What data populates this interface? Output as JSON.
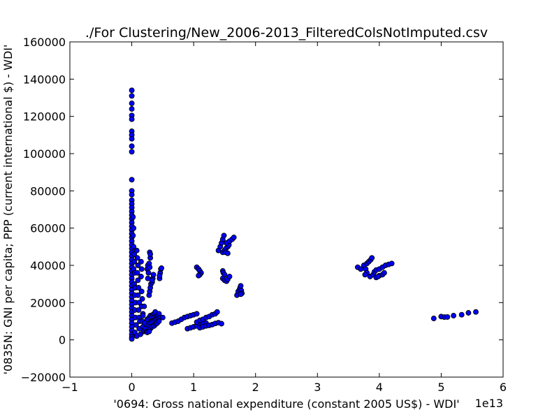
{
  "chart_data": {
    "type": "scatter",
    "title": "./For Clustering/New_2006-2013_FilteredColsNotImputed.csv",
    "xlabel": "'0694: Gross national expenditure  (constant 2005 US$) - WDI'",
    "ylabel": "'0835N: GNI per capita; PPP  (current international $) - WDI'",
    "x_offset_label": "1e13",
    "xlim": [
      -1,
      6
    ],
    "ylim": [
      -20000,
      160000
    ],
    "x_ticks": [
      "−1",
      "0",
      "1",
      "2",
      "3",
      "4",
      "5",
      "6"
    ],
    "y_ticks": [
      "−20000",
      "0",
      "20000",
      "40000",
      "60000",
      "80000",
      "100000",
      "120000",
      "140000",
      "160000"
    ],
    "grid": false,
    "marker_color": "#0000ff",
    "points": [
      [
        0.0,
        134000
      ],
      [
        0.0,
        131000
      ],
      [
        0.0,
        127000
      ],
      [
        0.0,
        124000
      ],
      [
        0.0,
        120500
      ],
      [
        0.0,
        118500
      ],
      [
        0.0,
        112000
      ],
      [
        0.0,
        110000
      ],
      [
        0.0,
        108000
      ],
      [
        0.0,
        104000
      ],
      [
        0.0,
        101000
      ],
      [
        0.0,
        86000
      ],
      [
        0.0,
        80000
      ],
      [
        0.0,
        78000
      ],
      [
        0.0,
        75000
      ],
      [
        0.0,
        73000
      ],
      [
        0.0,
        71000
      ],
      [
        0.0,
        69000
      ],
      [
        0.0,
        67000
      ],
      [
        0.0,
        65000
      ],
      [
        0.0,
        63000
      ],
      [
        0.0,
        61000
      ],
      [
        0.0,
        59000
      ],
      [
        0.0,
        57000
      ],
      [
        0.0,
        55000
      ],
      [
        0.0,
        53000
      ],
      [
        0.0,
        51000
      ],
      [
        0.0,
        49000
      ],
      [
        0.0,
        47000
      ],
      [
        0.0,
        45000
      ],
      [
        0.0,
        43000
      ],
      [
        0.0,
        41000
      ],
      [
        0.0,
        39000
      ],
      [
        0.0,
        37000
      ],
      [
        0.0,
        35000
      ],
      [
        0.0,
        33000
      ],
      [
        0.0,
        31000
      ],
      [
        0.0,
        29000
      ],
      [
        0.0,
        27000
      ],
      [
        0.0,
        25000
      ],
      [
        0.0,
        23000
      ],
      [
        0.0,
        21000
      ],
      [
        0.0,
        19000
      ],
      [
        0.0,
        17000
      ],
      [
        0.0,
        15000
      ],
      [
        0.0,
        13000
      ],
      [
        0.0,
        11000
      ],
      [
        0.0,
        9000
      ],
      [
        0.0,
        7000
      ],
      [
        0.0,
        5000
      ],
      [
        0.0,
        3000
      ],
      [
        0.0,
        1500
      ],
      [
        0.0,
        500
      ],
      [
        0.02,
        66000
      ],
      [
        0.03,
        60000
      ],
      [
        0.02,
        56000
      ],
      [
        0.03,
        50000
      ],
      [
        0.04,
        46000
      ],
      [
        0.04,
        42000
      ],
      [
        0.03,
        38000
      ],
      [
        0.05,
        36000
      ],
      [
        0.04,
        30000
      ],
      [
        0.06,
        28000
      ],
      [
        0.05,
        24000
      ],
      [
        0.06,
        20000
      ],
      [
        0.05,
        16000
      ],
      [
        0.06,
        12000
      ],
      [
        0.07,
        8000
      ],
      [
        0.05,
        4000
      ],
      [
        0.08,
        2000
      ],
      [
        0.08,
        48000
      ],
      [
        0.09,
        44000
      ],
      [
        0.1,
        40000
      ],
      [
        0.09,
        36000
      ],
      [
        0.1,
        32000
      ],
      [
        0.11,
        28000
      ],
      [
        0.1,
        24000
      ],
      [
        0.12,
        20000
      ],
      [
        0.11,
        16000
      ],
      [
        0.12,
        12000
      ],
      [
        0.13,
        10000
      ],
      [
        0.12,
        6000
      ],
      [
        0.14,
        3000
      ],
      [
        0.15,
        42000
      ],
      [
        0.16,
        38000
      ],
      [
        0.15,
        34000
      ],
      [
        0.16,
        26000
      ],
      [
        0.17,
        22000
      ],
      [
        0.16,
        18000
      ],
      [
        0.18,
        14000
      ],
      [
        0.17,
        10000
      ],
      [
        0.18,
        7000
      ],
      [
        0.19,
        4500
      ],
      [
        0.2,
        5000
      ],
      [
        0.2,
        18000
      ],
      [
        0.18,
        13000
      ],
      [
        0.21,
        9000
      ],
      [
        0.22,
        6000
      ],
      [
        0.24,
        4500
      ],
      [
        0.25,
        38000
      ],
      [
        0.26,
        40000
      ],
      [
        0.27,
        36000
      ],
      [
        0.26,
        33000
      ],
      [
        0.28,
        41000
      ],
      [
        0.29,
        39000
      ],
      [
        0.28,
        24000
      ],
      [
        0.29,
        26000
      ],
      [
        0.3,
        28000
      ],
      [
        0.31,
        30000
      ],
      [
        0.3,
        44000
      ],
      [
        0.29,
        47000
      ],
      [
        0.3,
        46000
      ],
      [
        0.33,
        31000
      ],
      [
        0.34,
        33000
      ],
      [
        0.35,
        35000
      ],
      [
        0.33,
        32000
      ],
      [
        0.25,
        11000
      ],
      [
        0.28,
        12000
      ],
      [
        0.3,
        13000
      ],
      [
        0.32,
        12500
      ],
      [
        0.34,
        13500
      ],
      [
        0.36,
        14000
      ],
      [
        0.38,
        15000
      ],
      [
        0.36,
        12000
      ],
      [
        0.38,
        11000
      ],
      [
        0.4,
        12000
      ],
      [
        0.42,
        13000
      ],
      [
        0.44,
        14000
      ],
      [
        0.27,
        8000
      ],
      [
        0.3,
        9000
      ],
      [
        0.32,
        9500
      ],
      [
        0.35,
        10000
      ],
      [
        0.38,
        10500
      ],
      [
        0.4,
        11000
      ],
      [
        0.43,
        11500
      ],
      [
        0.46,
        12000
      ],
      [
        0.5,
        12000
      ],
      [
        0.28,
        5000
      ],
      [
        0.3,
        6000
      ],
      [
        0.33,
        7000
      ],
      [
        0.36,
        7500
      ],
      [
        0.39,
        8500
      ],
      [
        0.41,
        9000
      ],
      [
        0.44,
        10000
      ],
      [
        0.25,
        4000
      ],
      [
        0.28,
        4500
      ],
      [
        0.45,
        33000
      ],
      [
        0.46,
        36000
      ],
      [
        0.47,
        38000
      ],
      [
        0.48,
        38500
      ],
      [
        0.45,
        34500
      ],
      [
        0.65,
        9000
      ],
      [
        0.7,
        9500
      ],
      [
        0.75,
        10000
      ],
      [
        0.8,
        11000
      ],
      [
        0.85,
        12000
      ],
      [
        0.9,
        12500
      ],
      [
        0.95,
        13000
      ],
      [
        1.0,
        13500
      ],
      [
        1.05,
        14000
      ],
      [
        0.9,
        6000
      ],
      [
        0.95,
        6500
      ],
      [
        1.0,
        7000
      ],
      [
        1.05,
        7500
      ],
      [
        1.1,
        8000
      ],
      [
        1.15,
        8500
      ],
      [
        1.2,
        9000
      ],
      [
        1.1,
        6500
      ],
      [
        1.15,
        7000
      ],
      [
        1.2,
        7500
      ],
      [
        1.25,
        7800
      ],
      [
        1.3,
        8200
      ],
      [
        1.35,
        8800
      ],
      [
        1.4,
        9200
      ],
      [
        1.45,
        8700
      ],
      [
        1.05,
        9500
      ],
      [
        1.1,
        10500
      ],
      [
        1.15,
        11000
      ],
      [
        1.2,
        12000
      ],
      [
        1.25,
        12500
      ],
      [
        1.3,
        13500
      ],
      [
        1.35,
        14000
      ],
      [
        1.38,
        15000
      ],
      [
        1.05,
        39000
      ],
      [
        1.08,
        38000
      ],
      [
        1.1,
        37000
      ],
      [
        1.12,
        36000
      ],
      [
        1.1,
        35000
      ],
      [
        1.08,
        34500
      ],
      [
        1.4,
        48000
      ],
      [
        1.43,
        50000
      ],
      [
        1.45,
        52000
      ],
      [
        1.47,
        54000
      ],
      [
        1.49,
        56000
      ],
      [
        1.47,
        47000
      ],
      [
        1.5,
        48000
      ],
      [
        1.52,
        49000
      ],
      [
        1.55,
        50000
      ],
      [
        1.57,
        51000
      ],
      [
        1.53,
        52000
      ],
      [
        1.58,
        53000
      ],
      [
        1.62,
        54000
      ],
      [
        1.65,
        55000
      ],
      [
        1.52,
        47000
      ],
      [
        1.55,
        46500
      ],
      [
        1.47,
        37000
      ],
      [
        1.48,
        36000
      ],
      [
        1.5,
        35000
      ],
      [
        1.47,
        33000
      ],
      [
        1.5,
        32000
      ],
      [
        1.53,
        31500
      ],
      [
        1.55,
        32500
      ],
      [
        1.58,
        34000
      ],
      [
        1.7,
        24000
      ],
      [
        1.72,
        26000
      ],
      [
        1.74,
        27000
      ],
      [
        1.75,
        28000
      ],
      [
        1.76,
        29000
      ],
      [
        1.77,
        26500
      ],
      [
        1.78,
        25000
      ],
      [
        1.76,
        24500
      ],
      [
        3.65,
        39000
      ],
      [
        3.7,
        38000
      ],
      [
        3.75,
        40000
      ],
      [
        3.8,
        41000
      ],
      [
        3.83,
        42000
      ],
      [
        3.86,
        43000
      ],
      [
        3.88,
        44000
      ],
      [
        3.78,
        38000
      ],
      [
        3.8,
        36000
      ],
      [
        3.77,
        35000
      ],
      [
        3.85,
        34000
      ],
      [
        3.9,
        35000
      ],
      [
        3.92,
        36500
      ],
      [
        3.95,
        37500
      ],
      [
        4.0,
        38000
      ],
      [
        4.05,
        39000
      ],
      [
        4.1,
        40000
      ],
      [
        4.15,
        40500
      ],
      [
        4.2,
        41000
      ],
      [
        3.95,
        33500
      ],
      [
        4.0,
        34500
      ],
      [
        4.05,
        35000
      ],
      [
        4.08,
        36000
      ],
      [
        3.98,
        34000
      ],
      [
        4.88,
        11500
      ],
      [
        5.0,
        12500
      ],
      [
        5.05,
        12200
      ],
      [
        5.1,
        12300
      ],
      [
        5.2,
        13000
      ],
      [
        5.33,
        13500
      ],
      [
        5.44,
        14500
      ],
      [
        5.56,
        15000
      ]
    ]
  }
}
